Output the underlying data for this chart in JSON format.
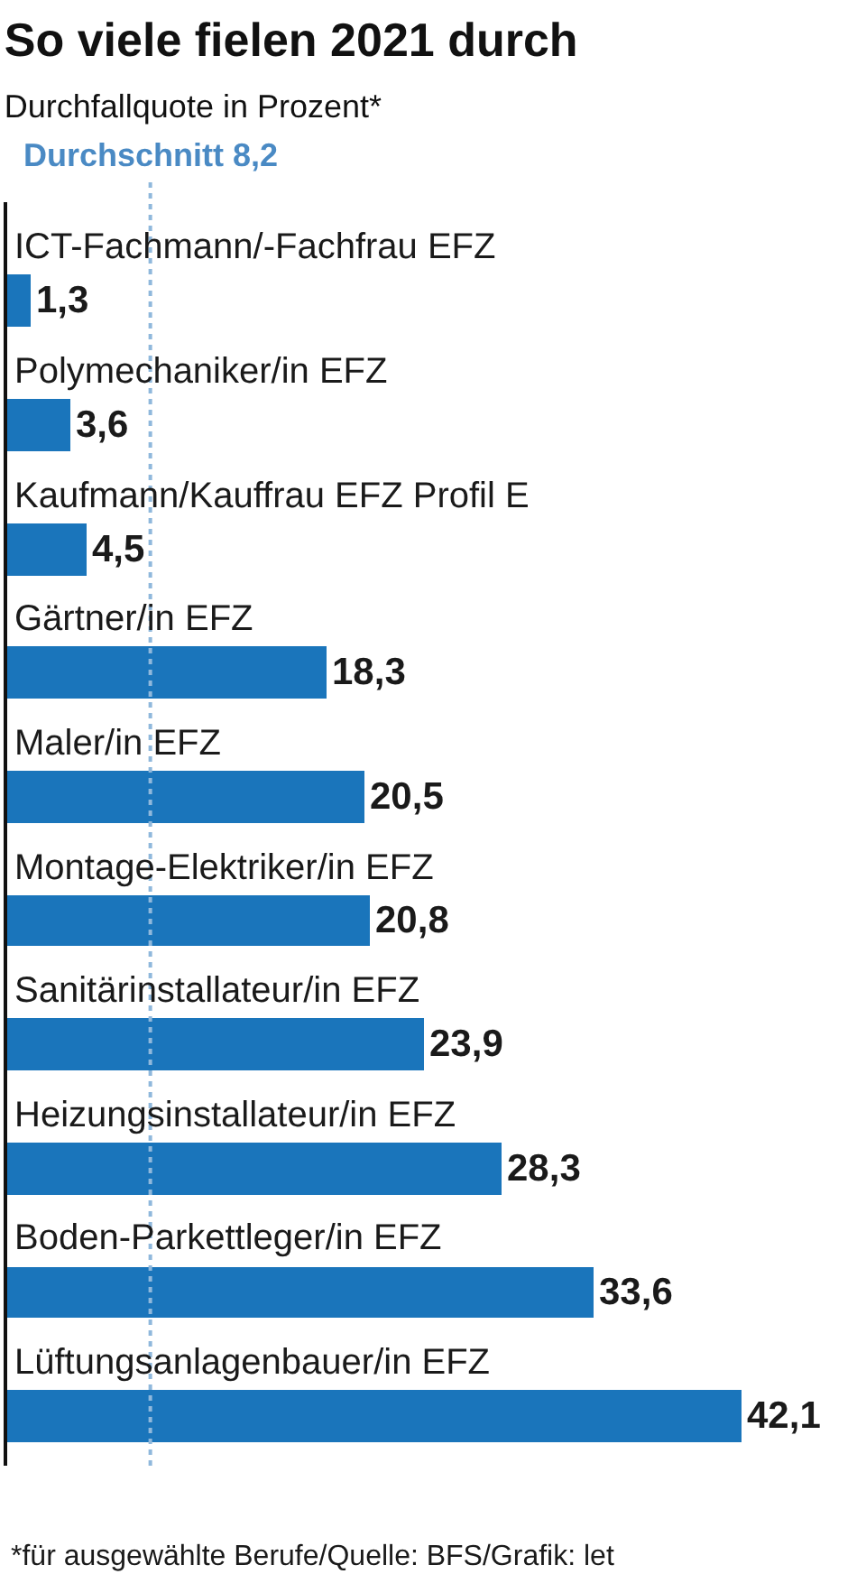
{
  "chart_data": {
    "type": "bar",
    "orientation": "horizontal",
    "title": "So viele fielen 2021 durch",
    "subtitle": "Durchfallquote in Prozent*",
    "categories": [
      "ICT-Fachmann/-Fachfrau EFZ",
      "Polymechaniker/in EFZ",
      "Kaufmann/Kauffrau EFZ Profil E",
      "Gärtner/in EFZ",
      "Maler/in EFZ",
      "Montage-Elektriker/in EFZ",
      "Sanitärinstallateur/in EFZ",
      "Heizungsinstallateur/in EFZ",
      "Boden-Parkettleger/in EFZ",
      "Lüftungsanlagenbauer/in EFZ"
    ],
    "values": [
      1.3,
      3.6,
      4.5,
      18.3,
      20.5,
      20.8,
      23.9,
      28.3,
      33.6,
      42.1
    ],
    "value_labels": [
      "1,3",
      "3,6",
      "4,5",
      "18,3",
      "20,5",
      "20,8",
      "23,9",
      "28,3",
      "33,6",
      "42,1"
    ],
    "color": "#1a75bb",
    "xlim": [
      0,
      49
    ],
    "ref_lines": [
      {
        "axis": "x",
        "value": 8.2,
        "label": "Durchschnitt 8,2",
        "color": "#8fb8dc",
        "line_style": "dotted"
      }
    ],
    "annotations": [
      "*für ausgewählte Berufe/Quelle: BFS/Grafik: let"
    ]
  }
}
